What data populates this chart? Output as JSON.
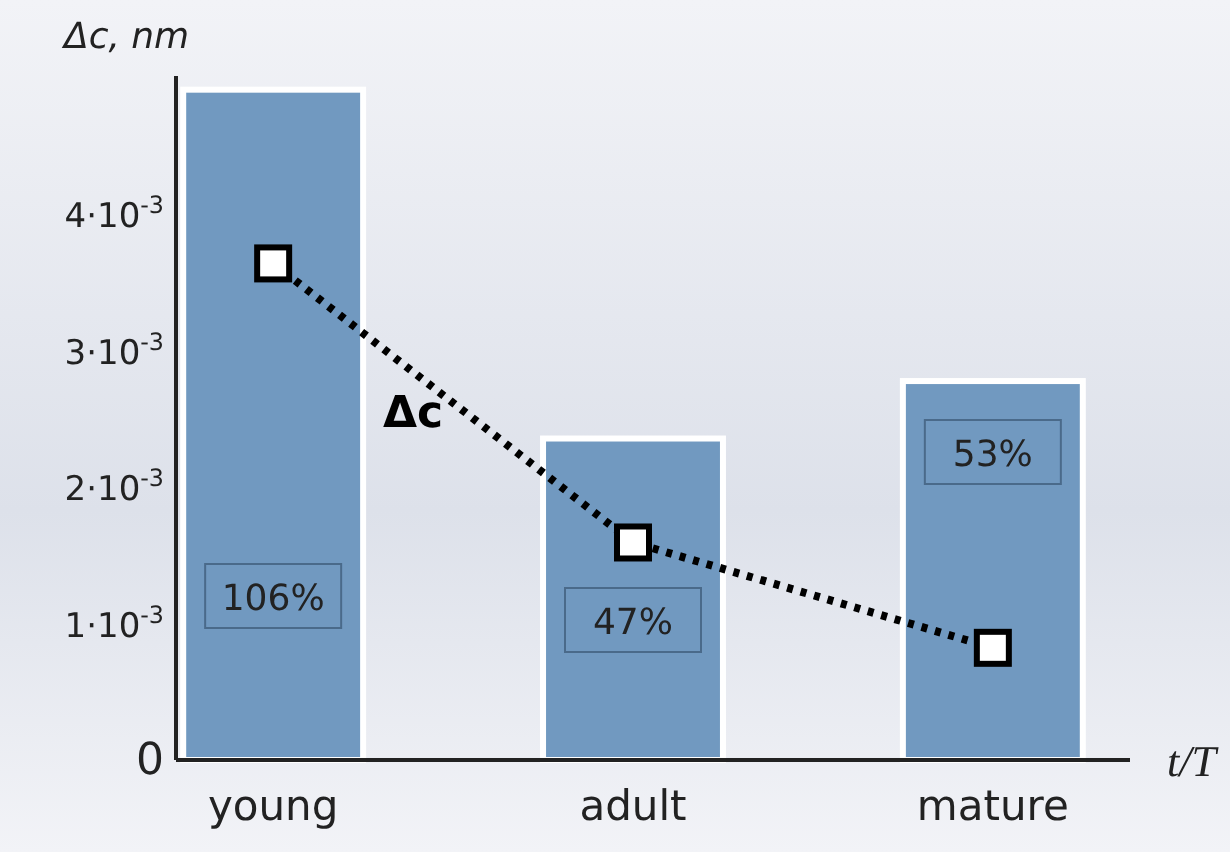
{
  "chart_data": {
    "type": "bar",
    "categories": [
      "young",
      "adult",
      "mature"
    ],
    "ylabel": "Δc, nm",
    "xlabel": "t/T",
    "ylim": [
      0,
      0.005
    ],
    "yticks": [
      {
        "value": 0,
        "label": "0"
      },
      {
        "value": 0.001,
        "label": "1·10$^{-3}$"
      },
      {
        "value": 0.002,
        "label": "2·10$^{-3}$"
      },
      {
        "value": 0.003,
        "label": "3·10$^{-3}$"
      },
      {
        "value": 0.004,
        "label": "4·10$^{-3}$"
      }
    ],
    "grid": false,
    "series": [
      {
        "color": "#7199c0",
        "values": [
          0.0049,
          0.00235,
          0.00277
        ]
      },
      {
        "type": "line",
        "name": "Δc",
        "color": "#000000",
        "values": [
          0.00363,
          0.00159,
          0.00082
        ],
        "marker": "square",
        "line_style": "dotted"
      }
    ],
    "annotations": [
      "106%",
      "47%",
      "53%"
    ]
  }
}
